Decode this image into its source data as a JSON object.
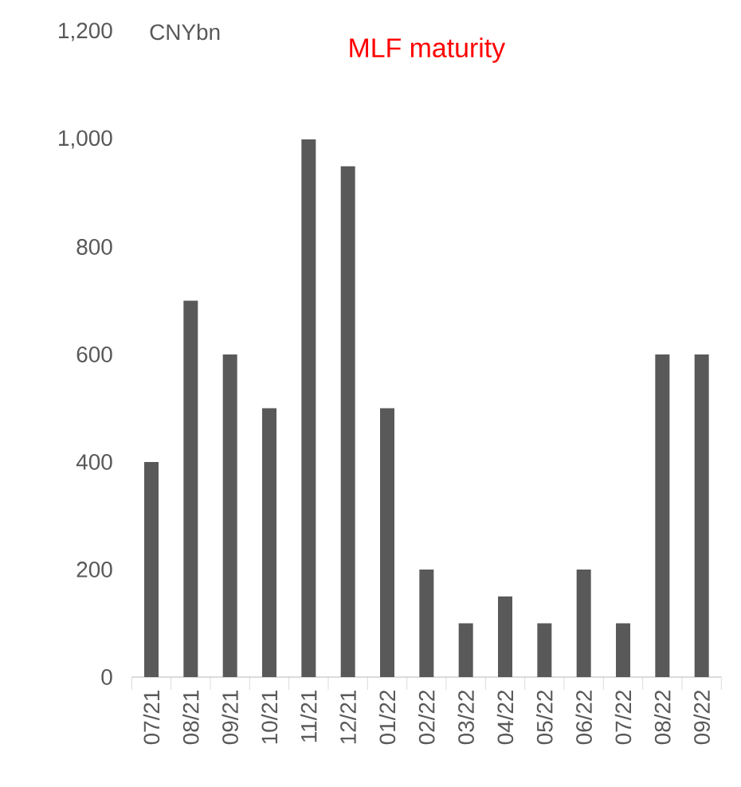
{
  "chart_data": {
    "type": "bar",
    "title": "MLF maturity",
    "ylabel": "CNYbn",
    "categories": [
      "07/21",
      "08/21",
      "09/21",
      "10/21",
      "11/21",
      "12/21",
      "01/22",
      "02/22",
      "03/22",
      "04/22",
      "05/22",
      "06/22",
      "07/22",
      "08/22",
      "09/22"
    ],
    "values": [
      400,
      700,
      600,
      500,
      1000,
      950,
      500,
      200,
      100,
      150,
      100,
      200,
      100,
      600,
      600
    ],
    "color": "#595959",
    "ylim": [
      0,
      1200
    ],
    "yticks": [
      0,
      200,
      400,
      600,
      800,
      {
        "value": 1000,
        "label": "1,000"
      },
      {
        "value": 1200,
        "label": "1,200"
      }
    ]
  }
}
